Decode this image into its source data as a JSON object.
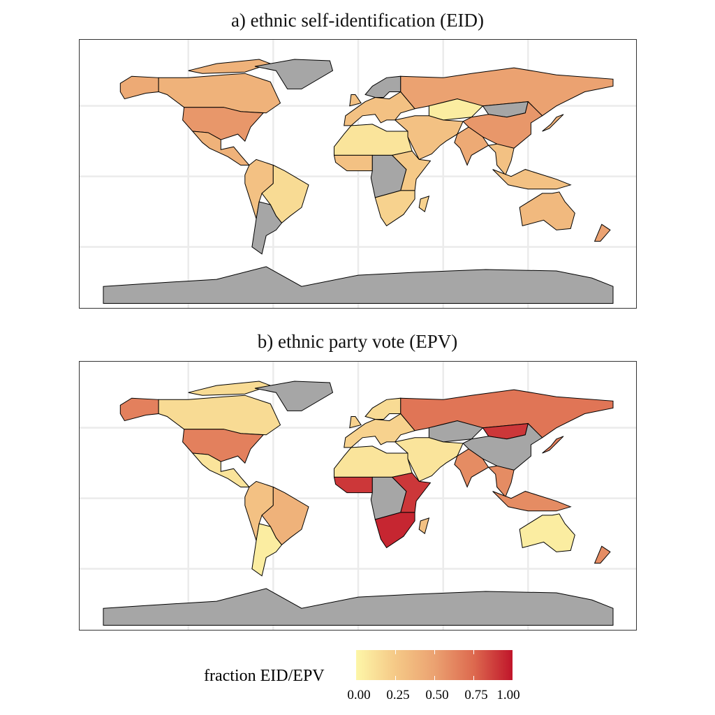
{
  "chart_data": [
    {
      "type": "choropleth",
      "title": "a) ethnic self-identification (EID)",
      "missing_color": "#a6a6a6",
      "regions": {
        "alaska": 0.45,
        "canada": 0.4,
        "usa": 0.55,
        "greenland": null,
        "mexico_central_america": 0.4,
        "andes": 0.3,
        "brazil": 0.15,
        "argentina": null,
        "europe": 0.3,
        "scandinavia": null,
        "russia": 0.5,
        "kazakhstan": 0.05,
        "mongolia": null,
        "china": 0.55,
        "middle_east": 0.3,
        "india": 0.45,
        "southeast_asia": 0.3,
        "north_africa": 0.1,
        "west_africa": 0.3,
        "central_africa": null,
        "east_africa": 0.25,
        "southern_africa": 0.2,
        "madagascar": 0.2,
        "australia": 0.35,
        "new_zealand": 0.5,
        "japan": 0.4,
        "antarctica": null
      }
    },
    {
      "type": "choropleth",
      "title": "b) ethnic party vote (EPV)",
      "missing_color": "#a6a6a6",
      "regions": {
        "alaska": 0.65,
        "canada": 0.15,
        "usa": 0.65,
        "greenland": null,
        "mexico_central_america": 0.1,
        "andes": 0.3,
        "brazil": 0.4,
        "argentina": 0.05,
        "europe": 0.2,
        "scandinavia": 0.15,
        "russia": 0.7,
        "kazakhstan": null,
        "mongolia": 0.9,
        "china": null,
        "middle_east": 0.1,
        "india": 0.6,
        "southeast_asia": 0.6,
        "north_africa": 0.1,
        "west_africa": 0.9,
        "central_africa": null,
        "east_africa": 0.9,
        "southern_africa": 0.95,
        "madagascar": 0.3,
        "australia": 0.05,
        "new_zealand": 0.6,
        "japan": 0.65,
        "antarctica": null
      }
    }
  ],
  "legend": {
    "title": "fraction EID/EPV",
    "ticks": [
      "0.00",
      "0.25",
      "0.50",
      "0.75",
      "1.00"
    ],
    "colors": [
      "#fdf6a8",
      "#f5c987",
      "#eba271",
      "#dd6a4f",
      "#c0152a"
    ]
  }
}
